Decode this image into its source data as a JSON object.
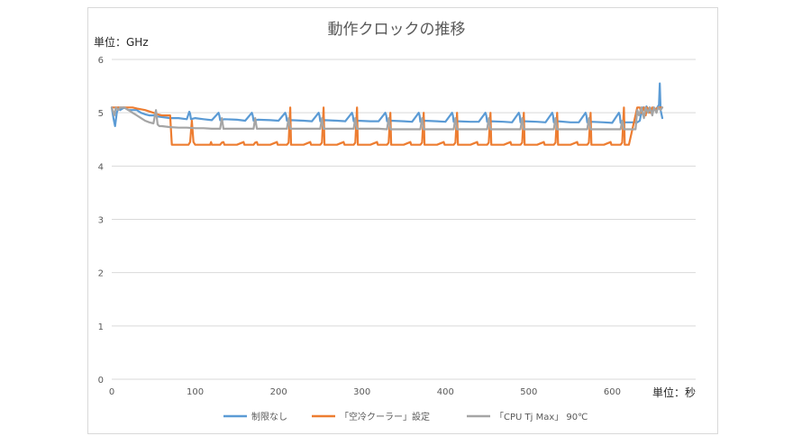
{
  "chart_data": {
    "type": "line",
    "title": "動作クロックの推移",
    "ylabel": "単位：GHz",
    "xlabel": "単位：秒",
    "xlim": [
      0,
      700
    ],
    "ylim": [
      0,
      6
    ],
    "x_ticks": [
      "0",
      "100",
      "200",
      "300",
      "400",
      "500",
      "600"
    ],
    "y_ticks": [
      "0",
      "1",
      "2",
      "3",
      "4",
      "5",
      "6"
    ],
    "grid": true,
    "legend_position": "bottom",
    "series": [
      {
        "name": "制限なし",
        "color": "#5b9bd5",
        "x": [
          0,
          2,
          4,
          6,
          8,
          10,
          15,
          20,
          30,
          35,
          40,
          45,
          50,
          55,
          60,
          70,
          80,
          90,
          93,
          94,
          95,
          100,
          110,
          120,
          128,
          129,
          130,
          135,
          150,
          160,
          168,
          169,
          170,
          175,
          190,
          200,
          208,
          209,
          210,
          215,
          230,
          240,
          248,
          249,
          250,
          255,
          270,
          280,
          288,
          289,
          290,
          295,
          310,
          320,
          328,
          329,
          330,
          335,
          350,
          360,
          368,
          369,
          370,
          375,
          390,
          400,
          408,
          409,
          410,
          415,
          430,
          440,
          448,
          449,
          450,
          455,
          470,
          480,
          488,
          489,
          490,
          495,
          510,
          520,
          528,
          529,
          530,
          535,
          550,
          560,
          568,
          569,
          570,
          575,
          590,
          600,
          608,
          609,
          610,
          615,
          630,
          633,
          636,
          638,
          640,
          641,
          643,
          645,
          648,
          650,
          652,
          654,
          656,
          657,
          658,
          660
        ],
        "y": [
          5.1,
          4.9,
          4.75,
          5.0,
          5.1,
          5.05,
          5.1,
          5.05,
          5.05,
          5.0,
          4.97,
          4.95,
          4.95,
          4.93,
          4.92,
          4.9,
          4.9,
          4.88,
          5.02,
          4.98,
          4.88,
          4.9,
          4.88,
          4.86,
          5.0,
          4.95,
          4.86,
          4.88,
          4.87,
          4.85,
          5.0,
          4.95,
          4.85,
          4.87,
          4.86,
          4.85,
          5.0,
          4.95,
          4.85,
          4.86,
          4.85,
          4.84,
          5.0,
          4.95,
          4.84,
          4.86,
          4.85,
          4.84,
          5.0,
          4.95,
          4.84,
          4.85,
          4.84,
          4.84,
          5.0,
          4.95,
          4.84,
          4.85,
          4.84,
          4.83,
          5.0,
          4.95,
          4.83,
          4.85,
          4.84,
          4.83,
          5.0,
          4.95,
          4.83,
          4.84,
          4.83,
          4.83,
          5.0,
          4.95,
          4.83,
          4.84,
          4.83,
          4.82,
          5.0,
          4.95,
          4.82,
          4.84,
          4.83,
          4.82,
          5.0,
          4.95,
          4.82,
          4.84,
          4.82,
          4.82,
          5.0,
          4.95,
          4.82,
          4.83,
          4.82,
          4.81,
          5.0,
          4.95,
          4.81,
          4.82,
          4.82,
          4.85,
          5.1,
          5.1,
          5.05,
          5.12,
          5.05,
          5.1,
          5.0,
          5.1,
          5.05,
          5.1,
          5.15,
          5.55,
          5.05,
          4.9
        ]
      },
      {
        "name": "「空冷クーラー」設定",
        "color": "#ed7d31",
        "x": [
          0,
          5,
          10,
          20,
          25,
          30,
          40,
          50,
          55,
          60,
          65,
          70,
          72,
          74,
          76,
          78,
          80,
          92,
          94,
          96,
          98,
          100,
          110,
          118,
          119,
          120,
          130,
          132,
          134,
          135,
          140,
          150,
          158,
          159,
          160,
          170,
          172,
          174,
          175,
          180,
          190,
          198,
          199,
          200,
          210,
          212,
          214,
          215,
          220,
          230,
          238,
          239,
          240,
          250,
          252,
          254,
          255,
          260,
          270,
          278,
          279,
          280,
          290,
          292,
          294,
          295,
          300,
          310,
          318,
          319,
          320,
          330,
          332,
          334,
          335,
          340,
          350,
          358,
          359,
          360,
          370,
          372,
          374,
          375,
          380,
          390,
          398,
          399,
          400,
          410,
          412,
          414,
          415,
          420,
          430,
          438,
          439,
          440,
          450,
          452,
          454,
          455,
          460,
          470,
          478,
          479,
          480,
          490,
          492,
          494,
          495,
          500,
          510,
          518,
          519,
          520,
          530,
          532,
          534,
          535,
          540,
          550,
          558,
          559,
          560,
          570,
          572,
          574,
          575,
          580,
          590,
          598,
          599,
          600,
          610,
          612,
          614,
          615,
          620,
          630,
          633,
          635,
          638,
          640,
          642,
          645,
          648,
          650,
          655,
          660
        ],
        "y": [
          5.1,
          5.1,
          5.1,
          5.1,
          5.1,
          5.08,
          5.05,
          5.0,
          4.97,
          4.95,
          4.95,
          4.95,
          4.4,
          4.4,
          4.4,
          4.4,
          4.4,
          4.4,
          4.45,
          4.85,
          4.45,
          4.4,
          4.4,
          4.4,
          4.45,
          4.4,
          4.4,
          4.44,
          4.45,
          4.4,
          4.4,
          4.4,
          4.45,
          4.4,
          4.4,
          4.4,
          4.44,
          4.45,
          4.4,
          4.4,
          4.4,
          4.45,
          4.4,
          4.4,
          4.4,
          4.44,
          5.1,
          4.4,
          4.4,
          4.4,
          4.45,
          4.4,
          4.4,
          4.4,
          4.44,
          5.1,
          4.4,
          4.4,
          4.4,
          4.45,
          4.4,
          4.4,
          4.4,
          4.44,
          5.1,
          4.4,
          4.4,
          4.4,
          4.45,
          4.4,
          4.4,
          4.4,
          4.44,
          5.0,
          4.4,
          4.4,
          4.4,
          4.45,
          4.4,
          4.4,
          4.4,
          4.44,
          5.0,
          4.4,
          4.4,
          4.4,
          4.45,
          4.4,
          4.4,
          4.4,
          4.44,
          5.0,
          4.4,
          4.4,
          4.4,
          4.45,
          4.4,
          4.4,
          4.4,
          4.44,
          5.0,
          4.4,
          4.4,
          4.4,
          4.45,
          4.4,
          4.4,
          4.4,
          4.44,
          5.0,
          4.4,
          4.4,
          4.4,
          4.45,
          4.4,
          4.4,
          4.4,
          4.44,
          5.0,
          4.4,
          4.4,
          4.4,
          4.45,
          4.4,
          4.4,
          4.4,
          4.44,
          5.0,
          4.4,
          4.4,
          4.4,
          4.45,
          4.4,
          4.4,
          4.4,
          4.44,
          5.1,
          4.4,
          4.4,
          5.1,
          5.1,
          5.0,
          5.1,
          4.95,
          5.1,
          5.0,
          5.1,
          5.05,
          5.1,
          5.1
        ]
      },
      {
        "name": "「CPU Tj Max」 90℃",
        "color": "#a5a5a5",
        "x": [
          0,
          3,
          5,
          8,
          10,
          15,
          20,
          25,
          30,
          35,
          40,
          45,
          50,
          53,
          55,
          57,
          60,
          70,
          80,
          90,
          100,
          110,
          120,
          130,
          132,
          133,
          134,
          140,
          150,
          160,
          170,
          172,
          173,
          174,
          180,
          190,
          200,
          210,
          212,
          213,
          214,
          220,
          230,
          240,
          250,
          252,
          253,
          254,
          260,
          270,
          280,
          290,
          292,
          293,
          294,
          300,
          310,
          320,
          330,
          332,
          333,
          334,
          340,
          350,
          360,
          370,
          372,
          373,
          374,
          380,
          390,
          400,
          410,
          412,
          413,
          414,
          420,
          430,
          440,
          450,
          452,
          453,
          454,
          460,
          470,
          480,
          490,
          492,
          493,
          494,
          500,
          510,
          520,
          530,
          532,
          533,
          534,
          540,
          550,
          560,
          570,
          572,
          573,
          574,
          580,
          590,
          600,
          610,
          612,
          613,
          614,
          620,
          628,
          630,
          632,
          635,
          638,
          640,
          643,
          645,
          648,
          650,
          653,
          655,
          658,
          660
        ],
        "y": [
          5.1,
          4.95,
          5.1,
          5.05,
          5.1,
          5.1,
          5.05,
          5.0,
          4.95,
          4.9,
          4.85,
          4.82,
          4.8,
          5.05,
          4.78,
          4.75,
          4.75,
          4.73,
          4.72,
          4.72,
          4.71,
          4.71,
          4.7,
          4.7,
          4.9,
          4.8,
          4.7,
          4.7,
          4.7,
          4.7,
          4.7,
          4.9,
          4.8,
          4.7,
          4.7,
          4.7,
          4.7,
          4.7,
          4.9,
          4.8,
          4.7,
          4.7,
          4.7,
          4.7,
          4.7,
          4.9,
          4.8,
          4.7,
          4.7,
          4.7,
          4.7,
          4.7,
          4.9,
          4.8,
          4.7,
          4.7,
          4.7,
          4.7,
          4.69,
          4.9,
          4.8,
          4.69,
          4.69,
          4.69,
          4.69,
          4.69,
          4.9,
          4.8,
          4.69,
          4.69,
          4.69,
          4.69,
          4.69,
          4.9,
          4.8,
          4.69,
          4.69,
          4.69,
          4.69,
          4.69,
          4.9,
          4.8,
          4.69,
          4.69,
          4.69,
          4.69,
          4.69,
          4.9,
          4.8,
          4.69,
          4.69,
          4.69,
          4.69,
          4.69,
          4.9,
          4.8,
          4.69,
          4.69,
          4.69,
          4.69,
          4.69,
          4.9,
          4.8,
          4.69,
          4.69,
          4.69,
          4.69,
          4.69,
          4.85,
          4.8,
          4.69,
          4.69,
          4.69,
          5.05,
          4.95,
          5.1,
          4.9,
          5.1,
          5.0,
          5.1,
          4.95,
          5.1,
          5.0,
          5.1,
          5.05,
          5.1
        ]
      }
    ]
  }
}
